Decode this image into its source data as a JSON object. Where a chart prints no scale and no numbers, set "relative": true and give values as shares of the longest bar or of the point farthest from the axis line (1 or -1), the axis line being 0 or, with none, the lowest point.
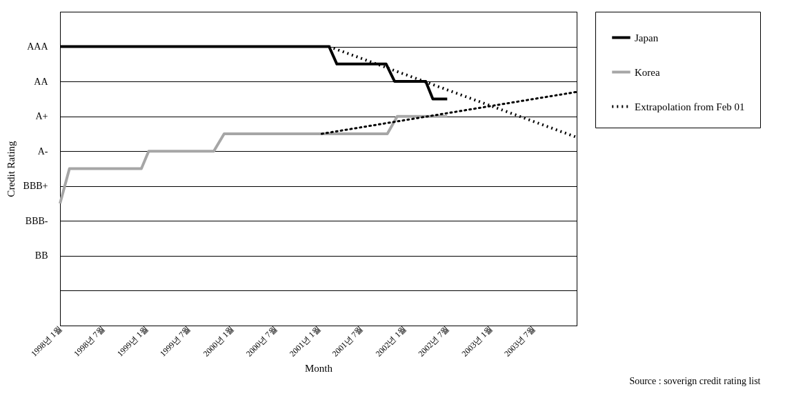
{
  "chart_data": {
    "type": "line",
    "xlabel": "Month",
    "ylabel": "Credit Rating",
    "relative": true,
    "y_categories": [
      null,
      "AAA",
      "AA",
      "A+",
      "A-",
      "BBB+",
      "BBB-",
      "BB",
      null,
      null
    ],
    "annotations": [
      "Source : soverign credit rating list"
    ],
    "xlim": [
      "1998-01-01",
      "2004-01-01"
    ],
    "xticks": [
      {
        "value": "1998-01-01",
        "label": "1998년 1월"
      },
      {
        "value": "1998-07-01",
        "label": "1998년 7월"
      },
      {
        "value": "1999-01-01",
        "label": "1999년 1월"
      },
      {
        "value": "1999-07-01",
        "label": "1999년 7월"
      },
      {
        "value": "2000-01-01",
        "label": "2000년 1월"
      },
      {
        "value": "2000-07-01",
        "label": "2000년 7월"
      },
      {
        "value": "2001-01-01",
        "label": "2001년 1월"
      },
      {
        "value": "2001-07-01",
        "label": "2001년 7월"
      },
      {
        "value": "2002-01-01",
        "label": "2002년 1월"
      },
      {
        "value": "2002-07-01",
        "label": "2002년 7월"
      },
      {
        "value": "2003-01-01",
        "label": "2003년 1월"
      },
      {
        "value": "2003-07-01",
        "label": "2003년 7월"
      }
    ],
    "grid": "y",
    "legend": "right",
    "marker": "none",
    "series": [
      {
        "name": "Japan",
        "color": "#000000",
        "line_style": "solid",
        "x": [
          "1998-01-01",
          "2001-02-15",
          "2001-03-20",
          "2001-10-15",
          "2001-11-20",
          "2002-04-01",
          "2002-05-01",
          "2002-07-01"
        ],
        "values": [
          1,
          1,
          0.9375,
          0.9375,
          0.875,
          0.875,
          0.8125,
          0.8125
        ]
      },
      {
        "name": "Korea",
        "color": "#a6a6a6",
        "line_style": "solid",
        "x": [
          "1998-01-01",
          "1998-02-10",
          "1998-12-12",
          "1999-01-12",
          "1999-10-15",
          "1999-11-28",
          "2001-10-20",
          "2001-12-01",
          "2002-07-01"
        ],
        "values": [
          0.4375,
          0.5625,
          0.5625,
          0.625,
          0.625,
          0.6875,
          0.6875,
          0.75,
          0.75
        ]
      },
      {
        "name": "Extrapolation from Feb 01",
        "color": "#000000",
        "line_style": "dotted",
        "x": [
          "2001-02-15",
          "2004-01-01"
        ],
        "values": [
          1,
          0.675
        ]
      },
      {
        "color": "#000000",
        "line_style": "dotted",
        "x": [
          "2001-01-15",
          "2004-01-01"
        ],
        "values": [
          0.6875,
          0.8375
        ]
      }
    ]
  }
}
